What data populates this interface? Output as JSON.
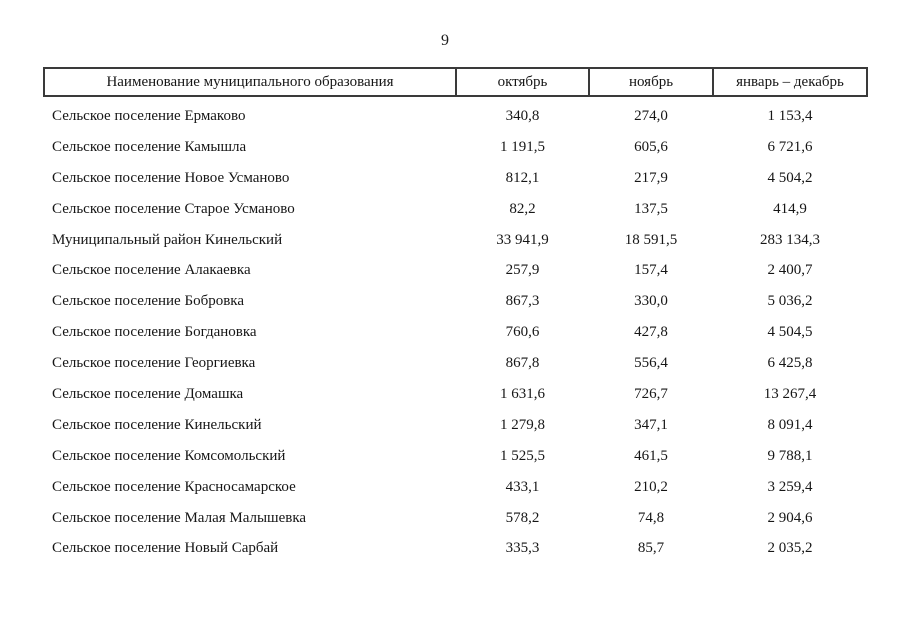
{
  "page": {
    "number": "9"
  },
  "table": {
    "headers": {
      "name": "Наименование муниципального образования",
      "october": "октябрь",
      "november": "ноябрь",
      "january_december": "январь – декабрь"
    },
    "rows": [
      {
        "name": "Сельское поселение Ермаково",
        "oct": "340,8",
        "nov": "274,0",
        "jan_dec": "1 153,4"
      },
      {
        "name": "Сельское поселение Камышла",
        "oct": "1 191,5",
        "nov": "605,6",
        "jan_dec": "6 721,6"
      },
      {
        "name": "Сельское поселение Новое Усманово",
        "oct": "812,1",
        "nov": "217,9",
        "jan_dec": "4 504,2"
      },
      {
        "name": "Сельское поселение Старое Усманово",
        "oct": "82,2",
        "nov": "137,5",
        "jan_dec": "414,9"
      },
      {
        "name": "Муниципальный район Кинельский",
        "oct": "33 941,9",
        "nov": "18 591,5",
        "jan_dec": "283 134,3"
      },
      {
        "name": "Сельское поселение Алакаевка",
        "oct": "257,9",
        "nov": "157,4",
        "jan_dec": "2 400,7"
      },
      {
        "name": "Сельское поселение Бобровка",
        "oct": "867,3",
        "nov": "330,0",
        "jan_dec": "5 036,2"
      },
      {
        "name": "Сельское поселение Богдановка",
        "oct": "760,6",
        "nov": "427,8",
        "jan_dec": "4 504,5"
      },
      {
        "name": "Сельское поселение Георгиевка",
        "oct": "867,8",
        "nov": "556,4",
        "jan_dec": "6 425,8"
      },
      {
        "name": "Сельское поселение Домашка",
        "oct": "1 631,6",
        "nov": "726,7",
        "jan_dec": "13 267,4"
      },
      {
        "name": "Сельское поселение Кинельский",
        "oct": "1 279,8",
        "nov": "347,1",
        "jan_dec": "8 091,4"
      },
      {
        "name": "Сельское поселение Комсомольский",
        "oct": "1 525,5",
        "nov": "461,5",
        "jan_dec": "9 788,1"
      },
      {
        "name": "Сельское поселение Красносамарское",
        "oct": "433,1",
        "nov": "210,2",
        "jan_dec": "3 259,4"
      },
      {
        "name": "Сельское поселение Малая Малышевка",
        "oct": "578,2",
        "nov": "74,8",
        "jan_dec": "2 904,6"
      },
      {
        "name": "Сельское поселение Новый Сарбай",
        "oct": "335,3",
        "nov": "85,7",
        "jan_dec": "2 035,2"
      }
    ]
  }
}
